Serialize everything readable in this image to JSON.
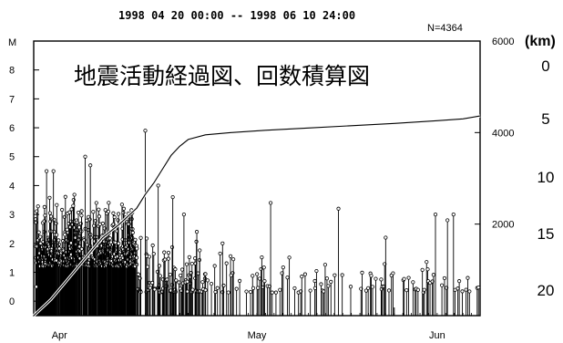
{
  "chart_data": {
    "type": "bar",
    "header": "1998 04 20 00:00 -- 1998 06 10 24:00",
    "n_label": "N=4364",
    "title": "地震活動経過図、回数積算図",
    "left_axis": {
      "label": "M",
      "ticks": [
        "0",
        "1",
        "2",
        "3",
        "4",
        "5",
        "6",
        "7",
        "8"
      ],
      "range": [
        -0.5,
        9.0
      ]
    },
    "right_axis": {
      "ticks": [
        "2000",
        "4000",
        "6000"
      ],
      "range": [
        0,
        6000
      ]
    },
    "x_axis": {
      "range_days": [
        0,
        52
      ],
      "month_labels": [
        {
          "label": "Apr",
          "day": 3
        },
        {
          "label": "May",
          "day": 26
        },
        {
          "label": "Jun",
          "day": 47
        }
      ],
      "month_boundaries": [
        11,
        42
      ]
    },
    "depth_scale": {
      "unit": "(km)",
      "labels": [
        "0",
        "5",
        "10",
        "15",
        "20"
      ]
    },
    "magnitude_events_sample": [
      {
        "day": 0.3,
        "m": 0.5
      },
      {
        "day": 0.8,
        "m": 2.0
      },
      {
        "day": 1.5,
        "m": 4.5
      },
      {
        "day": 2.3,
        "m": 4.5
      },
      {
        "day": 4.6,
        "m": 3.3
      },
      {
        "day": 6.0,
        "m": 5.0
      },
      {
        "day": 6.6,
        "m": 4.7
      },
      {
        "day": 7.3,
        "m": 3.4
      },
      {
        "day": 8.7,
        "m": 3.1
      },
      {
        "day": 10.5,
        "m": 3.2
      },
      {
        "day": 13.0,
        "m": 5.9
      },
      {
        "day": 14.5,
        "m": 4.0
      },
      {
        "day": 16.2,
        "m": 3.6
      },
      {
        "day": 17.5,
        "m": 3.0
      },
      {
        "day": 19.0,
        "m": 2.4
      },
      {
        "day": 22.0,
        "m": 2.0
      },
      {
        "day": 27.6,
        "m": 3.4
      },
      {
        "day": 35.5,
        "m": 3.2
      },
      {
        "day": 41.0,
        "m": 2.2
      },
      {
        "day": 46.8,
        "m": 3.0
      },
      {
        "day": 48.2,
        "m": 2.8
      },
      {
        "day": 48.9,
        "m": 3.0
      }
    ],
    "cumulative": {
      "points": [
        [
          0,
          0
        ],
        [
          2,
          350
        ],
        [
          4,
          800
        ],
        [
          6,
          1250
        ],
        [
          8,
          1700
        ],
        [
          10,
          2000
        ],
        [
          12,
          2350
        ],
        [
          13,
          2650
        ],
        [
          14,
          2900
        ],
        [
          15,
          3200
        ],
        [
          16,
          3500
        ],
        [
          17,
          3700
        ],
        [
          18,
          3850
        ],
        [
          20,
          3950
        ],
        [
          23,
          4000
        ],
        [
          27,
          4050
        ],
        [
          32,
          4100
        ],
        [
          37,
          4150
        ],
        [
          42,
          4200
        ],
        [
          47,
          4260
        ],
        [
          50,
          4300
        ],
        [
          52,
          4364
        ]
      ]
    }
  }
}
